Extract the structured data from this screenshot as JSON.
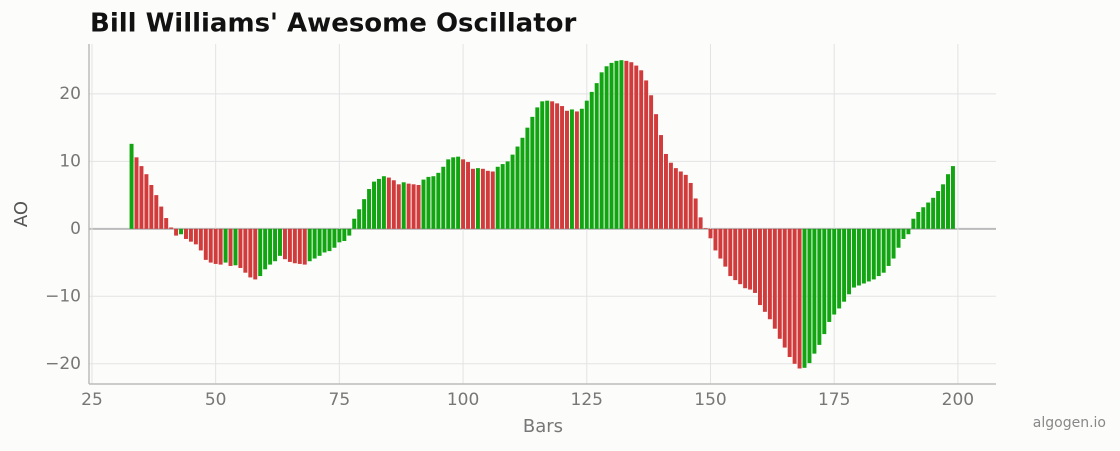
{
  "chart_data": {
    "type": "bar",
    "title": "Bill Williams' Awesome Oscillator",
    "x_label": "Bars",
    "y_label": "AO",
    "watermark": "algogen.io",
    "x": [
      33,
      34,
      35,
      36,
      37,
      38,
      39,
      40,
      41,
      42,
      43,
      44,
      45,
      46,
      47,
      48,
      49,
      50,
      51,
      52,
      53,
      54,
      55,
      56,
      57,
      58,
      59,
      60,
      61,
      62,
      63,
      64,
      65,
      66,
      67,
      68,
      69,
      70,
      71,
      72,
      73,
      74,
      75,
      76,
      77,
      78,
      79,
      80,
      81,
      82,
      83,
      84,
      85,
      86,
      87,
      88,
      89,
      90,
      91,
      92,
      93,
      94,
      95,
      96,
      97,
      98,
      99,
      100,
      101,
      102,
      103,
      104,
      105,
      106,
      107,
      108,
      109,
      110,
      111,
      112,
      113,
      114,
      115,
      116,
      117,
      118,
      119,
      120,
      121,
      122,
      123,
      124,
      125,
      126,
      127,
      128,
      129,
      130,
      131,
      132,
      133,
      134,
      135,
      136,
      137,
      138,
      139,
      140,
      141,
      142,
      143,
      144,
      145,
      146,
      147,
      148,
      149,
      150,
      151,
      152,
      153,
      154,
      155,
      156,
      157,
      158,
      159,
      160,
      161,
      162,
      163,
      164,
      165,
      166,
      167,
      168,
      169,
      170,
      171,
      172,
      173,
      174,
      175,
      176,
      177,
      178,
      179,
      180,
      181,
      182,
      183,
      184,
      185,
      186,
      187,
      188,
      189,
      190,
      191,
      192,
      193,
      194,
      195,
      196,
      197,
      198,
      199
    ],
    "values": [
      12.6,
      10.6,
      9.3,
      8.1,
      6.5,
      5.0,
      3.3,
      1.6,
      0.2,
      -1.0,
      -0.8,
      -1.5,
      -1.9,
      -2.3,
      -3.2,
      -4.6,
      -5.0,
      -5.2,
      -5.3,
      -5.0,
      -5.5,
      -5.4,
      -5.8,
      -6.5,
      -7.2,
      -7.5,
      -7.0,
      -6.0,
      -5.3,
      -4.8,
      -4.0,
      -4.5,
      -4.9,
      -5.1,
      -5.2,
      -5.3,
      -4.8,
      -4.4,
      -4.0,
      -3.5,
      -3.3,
      -2.8,
      -2.0,
      -1.8,
      -1.0,
      1.5,
      2.9,
      4.4,
      5.9,
      7.0,
      7.4,
      7.8,
      7.6,
      7.2,
      6.6,
      6.9,
      6.7,
      6.6,
      6.5,
      7.3,
      7.7,
      7.8,
      8.3,
      9.2,
      10.3,
      10.6,
      10.7,
      10.3,
      9.9,
      8.9,
      9.0,
      8.9,
      8.6,
      8.5,
      9.2,
      9.6,
      10.0,
      11.0,
      12.2,
      13.5,
      15.0,
      16.6,
      18.0,
      18.9,
      19.0,
      18.9,
      18.6,
      18.2,
      17.5,
      17.7,
      17.4,
      17.8,
      19.0,
      20.3,
      21.6,
      23.2,
      24.1,
      24.6,
      24.9,
      25.0,
      24.9,
      24.7,
      24.2,
      23.5,
      22.0,
      19.8,
      17.0,
      13.9,
      11.1,
      9.8,
      9.0,
      8.5,
      8.0,
      6.8,
      4.5,
      1.7,
      0.1,
      -1.4,
      -3.2,
      -4.4,
      -5.6,
      -7.0,
      -7.6,
      -8.2,
      -8.8,
      -9.0,
      -9.5,
      -11.3,
      -12.3,
      -13.4,
      -14.8,
      -16.3,
      -17.6,
      -19.0,
      -20.0,
      -20.7,
      -20.6,
      -19.9,
      -18.5,
      -17.2,
      -15.6,
      -13.8,
      -12.7,
      -11.8,
      -10.8,
      -9.7,
      -8.7,
      -8.4,
      -8.1,
      -7.8,
      -7.5,
      -7.0,
      -6.5,
      -5.5,
      -4.4,
      -2.8,
      -1.5,
      -0.8,
      1.5,
      2.5,
      3.2,
      3.9,
      4.6,
      5.6,
      6.6,
      8.1,
      9.3
    ],
    "colors": {
      "up": "#11a511",
      "down": "#d13b3b"
    },
    "xlim": [
      24.4,
      207.7
    ],
    "ylim": [
      -23,
      27.4
    ],
    "xticks": [
      25,
      50,
      75,
      100,
      125,
      150,
      175,
      200
    ],
    "yticks": [
      {
        "value": -20,
        "label": "−20"
      },
      {
        "value": -10,
        "label": "−10"
      },
      0,
      10,
      20
    ],
    "grid": true
  }
}
